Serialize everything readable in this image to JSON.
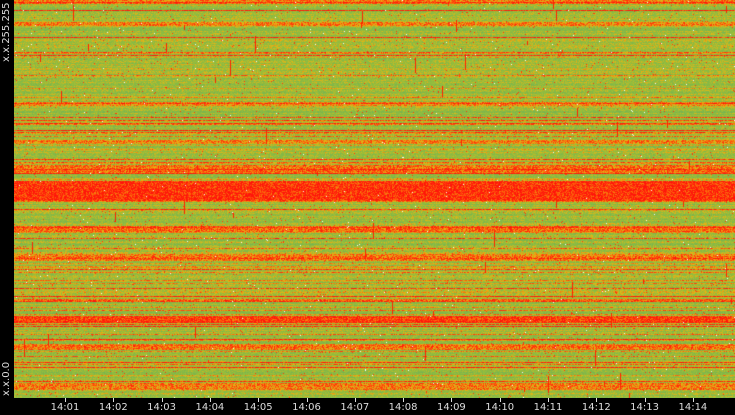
{
  "chart_data": {
    "type": "heatmap",
    "title": "",
    "xlabel": "",
    "ylabel": "",
    "x_ticks": [
      "14:01",
      "14:02",
      "14:03",
      "14:04",
      "14:05",
      "14:06",
      "14:07",
      "14:08",
      "14:09",
      "14:10",
      "14:11",
      "14:12",
      "14:13",
      "14:14"
    ],
    "y_ticks": [
      "x.x.255.255",
      "x.x.0.0"
    ],
    "colors": {
      "background": "#000000",
      "low": "#8ec06a",
      "mid": "#d6b21e",
      "high": "#ff1a00",
      "spike": "#ffffff"
    }
  }
}
